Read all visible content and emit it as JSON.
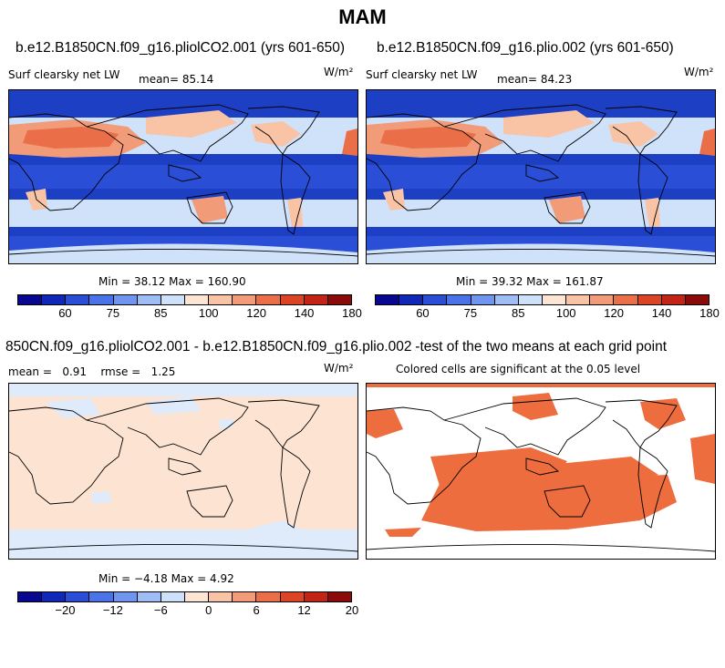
{
  "title": "MAM",
  "panels": {
    "top_left": {
      "case": "b.e12.B1850CN.f09_g16.pliolCO2.001 (yrs 601-650)",
      "variable": "Surf clearsky net LW",
      "mean": "mean=  85.14",
      "units": "W/m²",
      "minmax": "Min =  38.12 Max = 160.90"
    },
    "top_right": {
      "case": "b.e12.B1850CN.f09_g16.plio.002 (yrs 601-650)",
      "variable": "Surf clearsky net LW",
      "mean": "mean=  84.23",
      "units": "W/m²",
      "minmax": "Min =  39.32 Max = 161.87"
    },
    "bottom_left": {
      "case": "850CN.f09_g16.pliolCO2.001 - b.e12.B1850CN.f09_g16.plio.002",
      "stats": "mean =   0.91    rmse =   1.25",
      "units": "W/m²",
      "minmax": "Min = −4.18 Max =  4.92"
    },
    "bottom_right": {
      "case": "t-test of the two means at each grid point",
      "subtitle": "Colored cells are significant at the 0.05 level"
    }
  },
  "colorbar_top": {
    "colors": [
      "#08078f",
      "#1028b8",
      "#2a4fd6",
      "#4a73e8",
      "#6f95ef",
      "#9dbdf4",
      "#cde2fa",
      "#fde5d4",
      "#f9c3a6",
      "#f29b78",
      "#ea6e47",
      "#dc4426",
      "#c22416",
      "#8b0a0a"
    ],
    "ticks": [
      "60",
      "75",
      "85",
      "100",
      "120",
      "140",
      "180"
    ]
  },
  "colorbar_bottom": {
    "colors": [
      "#08078f",
      "#1028b8",
      "#2a4fd6",
      "#4a73e8",
      "#6f95ef",
      "#9dbdf4",
      "#cde2fa",
      "#fde5d4",
      "#f9c3a6",
      "#f29b78",
      "#ea6e47",
      "#dc4426",
      "#c22416",
      "#8b0a0a"
    ],
    "ticks": [
      "−20",
      "−12",
      "−6",
      "0",
      "6",
      "12",
      "20"
    ]
  },
  "colors": {
    "deep_blue": "#1d3fc4",
    "mid_blue": "#3a62de",
    "light_blue": "#cfe2f9",
    "pale_blue": "#dfeafb",
    "peach": "#fde4d2",
    "orange": "#ed6d3e",
    "red": "#d8401f"
  }
}
